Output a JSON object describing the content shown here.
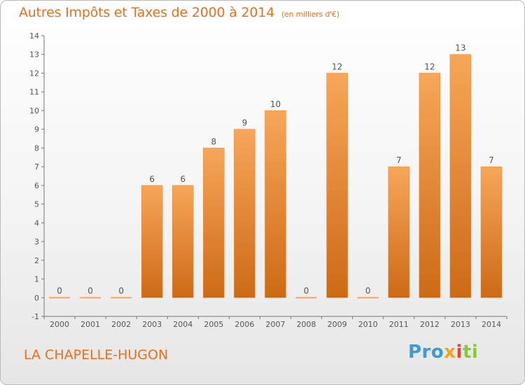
{
  "header": {
    "title": "Autres Impôts et Taxes de 2000 à 2014",
    "subtitle": "(en milliers d'€)"
  },
  "footer": {
    "place": "LA CHAPELLE-HUGON",
    "logo_parts": [
      "Pro",
      "x",
      "i",
      "ti"
    ]
  },
  "colors": {
    "accent": "#e8701e",
    "bar_top": "#f7a65a",
    "bar_bottom": "#cd6a16",
    "axis": "#777777",
    "text": "#555555"
  },
  "chart_data": {
    "type": "bar",
    "categories": [
      "2000",
      "2001",
      "2002",
      "2003",
      "2004",
      "2005",
      "2006",
      "2007",
      "2008",
      "2009",
      "2010",
      "2011",
      "2012",
      "2013",
      "2014"
    ],
    "values": [
      0,
      0,
      0,
      6,
      6,
      8,
      9,
      10,
      0,
      12,
      0,
      7,
      12,
      13,
      7
    ],
    "data_labels": [
      "0",
      "0",
      "0",
      "6",
      "6",
      "8",
      "9",
      "10",
      "0",
      "12",
      "0",
      "7",
      "12",
      "13",
      "7"
    ],
    "yticks": [
      "-1",
      "0",
      "1",
      "2",
      "3",
      "4",
      "5",
      "6",
      "7",
      "8",
      "9",
      "10",
      "11",
      "12",
      "13",
      "14"
    ],
    "ylim": [
      -1,
      14
    ],
    "grid": false,
    "legend": "none"
  }
}
